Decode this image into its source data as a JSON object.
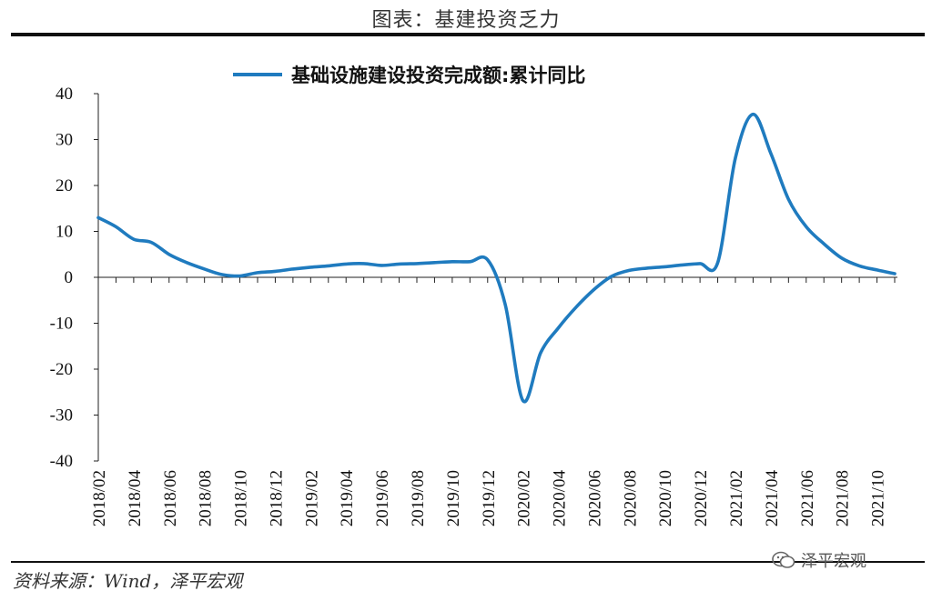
{
  "header": {
    "title": "图表：基建投资乏力"
  },
  "footer": {
    "source": "资料来源：Wind，泽平宏观",
    "watermark": "泽平宏观"
  },
  "chart_data": {
    "type": "line",
    "title": "",
    "xlabel": "",
    "ylabel": "",
    "ylim": [
      -40,
      40
    ],
    "yticks": [
      40,
      30,
      20,
      10,
      0,
      -10,
      -20,
      -30,
      -40
    ],
    "tick_labels_x": [
      "2018/02",
      "2018/04",
      "2018/06",
      "2018/08",
      "2018/10",
      "2018/12",
      "2019/02",
      "2019/04",
      "2019/06",
      "2019/08",
      "2019/10",
      "2019/12",
      "2020/02",
      "2020/04",
      "2020/06",
      "2020/08",
      "2020/10",
      "2020/12",
      "2021/02",
      "2021/04",
      "2021/06",
      "2021/08",
      "2021/10"
    ],
    "legend_position": "top-center",
    "grid": false,
    "series": [
      {
        "name": "基础设施建设投资完成额:累计同比",
        "color": "#1f7bbf",
        "x": [
          "2018/02",
          "2018/03",
          "2018/04",
          "2018/05",
          "2018/06",
          "2018/07",
          "2018/08",
          "2018/09",
          "2018/10",
          "2018/11",
          "2018/12",
          "2019/01",
          "2019/02",
          "2019/03",
          "2019/04",
          "2019/05",
          "2019/06",
          "2019/07",
          "2019/08",
          "2019/09",
          "2019/10",
          "2019/11",
          "2019/12",
          "2020/01",
          "2020/02",
          "2020/03",
          "2020/04",
          "2020/05",
          "2020/06",
          "2020/07",
          "2020/08",
          "2020/09",
          "2020/10",
          "2020/11",
          "2020/12",
          "2021/01",
          "2021/02",
          "2021/03",
          "2021/04",
          "2021/05",
          "2021/06",
          "2021/07",
          "2021/08",
          "2021/09",
          "2021/10",
          "2021/11"
        ],
        "values": [
          13.0,
          11.0,
          8.3,
          7.6,
          5.0,
          3.2,
          1.8,
          0.6,
          0.3,
          1.0,
          1.3,
          1.8,
          2.2,
          2.5,
          2.9,
          3.0,
          2.6,
          2.9,
          3.0,
          3.2,
          3.4,
          3.4,
          3.8,
          -6.0,
          -26.9,
          -16.4,
          -11.0,
          -6.5,
          -2.7,
          0.2,
          1.5,
          2.0,
          2.3,
          2.7,
          3.0,
          3.2,
          26.0,
          35.5,
          27.0,
          17.0,
          11.0,
          7.3,
          4.2,
          2.5,
          1.6,
          0.8
        ]
      }
    ]
  }
}
